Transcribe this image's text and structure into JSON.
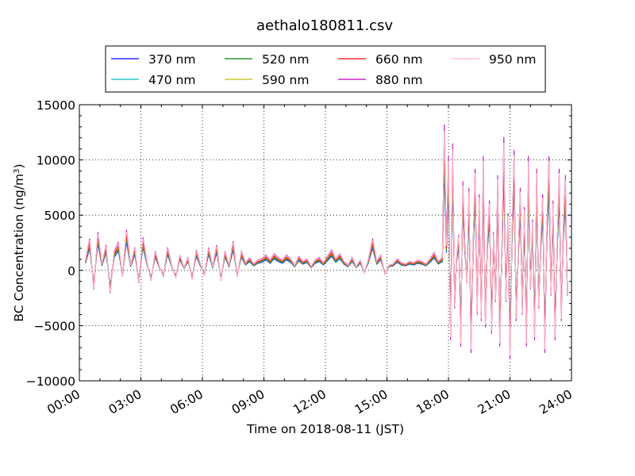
{
  "chart_data": {
    "type": "line",
    "title": "aethalo180811.csv",
    "xlabel": "Time on 2018-08-11 (JST)",
    "ylabel_main": "BC Concentration (ng/m",
    "ylabel_sup": "3",
    "ylabel_close": ")",
    "xlim_hours": [
      0,
      24
    ],
    "ylim": [
      -10000,
      15000
    ],
    "grid": true,
    "legend_position": "top-center",
    "x_ticks": [
      {
        "hour": 0,
        "label": "00:00"
      },
      {
        "hour": 3,
        "label": "03:00"
      },
      {
        "hour": 6,
        "label": "06:00"
      },
      {
        "hour": 9,
        "label": "09:00"
      },
      {
        "hour": 12,
        "label": "12:00"
      },
      {
        "hour": 15,
        "label": "15:00"
      },
      {
        "hour": 18,
        "label": "18:00"
      },
      {
        "hour": 21,
        "label": "21:00"
      },
      {
        "hour": 24,
        "label": "24:00"
      }
    ],
    "y_ticks": [
      {
        "value": 15000,
        "label": "15000"
      },
      {
        "value": 10000,
        "label": "10000"
      },
      {
        "value": 5000,
        "label": "5000"
      },
      {
        "value": 0,
        "label": "0"
      },
      {
        "value": -5000,
        "label": "−5000"
      },
      {
        "value": -10000,
        "label": "−10000"
      }
    ],
    "series": [
      {
        "name": "370 nm",
        "color": "#0000ff",
        "scale": 0.8
      },
      {
        "name": "470 nm",
        "color": "#00bfbf",
        "scale": 0.85
      },
      {
        "name": "520 nm",
        "color": "#008000",
        "scale": 0.9
      },
      {
        "name": "590 nm",
        "color": "#bfbf00",
        "scale": 0.95
      },
      {
        "name": "660 nm",
        "color": "#ff0000",
        "scale": 1.0
      },
      {
        "name": "880 nm",
        "color": "#bf00bf",
        "scale": 1.15
      },
      {
        "name": "950 nm",
        "color": "#ffb6c1",
        "scale": 1.1
      }
    ],
    "base_profile": {
      "x_hours": [
        0.3,
        0.5,
        0.7,
        0.9,
        1.1,
        1.3,
        1.5,
        1.7,
        1.9,
        2.1,
        2.3,
        2.5,
        2.7,
        2.9,
        3.1,
        3.3,
        3.5,
        3.7,
        3.9,
        4.1,
        4.3,
        4.5,
        4.7,
        4.9,
        5.1,
        5.3,
        5.5,
        5.7,
        5.9,
        6.1,
        6.3,
        6.5,
        6.7,
        6.9,
        7.1,
        7.3,
        7.5,
        7.7,
        7.9,
        8.1,
        8.3,
        8.5,
        8.7,
        8.9,
        9.1,
        9.3,
        9.5,
        9.7,
        9.9,
        10.1,
        10.3,
        10.5,
        10.7,
        10.9,
        11.1,
        11.3,
        11.5,
        11.7,
        11.9,
        12.1,
        12.3,
        12.5,
        12.7,
        12.9,
        13.1,
        13.3,
        13.5,
        13.7,
        13.9,
        14.1,
        14.3,
        14.5,
        14.7,
        14.9,
        15.1,
        15.3,
        15.5,
        15.7,
        15.9,
        16.1,
        16.3,
        16.5,
        16.7,
        16.9,
        17.1,
        17.3,
        17.5,
        17.7,
        17.8,
        17.9,
        18.0,
        18.1,
        18.2,
        18.3,
        18.4,
        18.5,
        18.6,
        18.7,
        18.8,
        18.9,
        19.0,
        19.1,
        19.2,
        19.3,
        19.4,
        19.5,
        19.6,
        19.7,
        19.8,
        19.9,
        20.0,
        20.1,
        20.2,
        20.3,
        20.4,
        20.5,
        20.6,
        20.7,
        20.8,
        20.9,
        21.0,
        21.1,
        21.2,
        21.3,
        21.4,
        21.5,
        21.6,
        21.7,
        21.8,
        21.9,
        22.0,
        22.1,
        22.2,
        22.3,
        22.4,
        22.5,
        22.6,
        22.7,
        22.8,
        22.9,
        23.0,
        23.1,
        23.2,
        23.3,
        23.4,
        23.5,
        23.6,
        23.7,
        23.8
      ],
      "y": [
        800,
        2500,
        -1500,
        3000,
        500,
        2000,
        -1800,
        1500,
        2200,
        -500,
        3200,
        400,
        1800,
        -1000,
        2600,
        600,
        -800,
        1500,
        300,
        -500,
        1800,
        400,
        -600,
        1200,
        200,
        1000,
        -700,
        1600,
        500,
        -400,
        1800,
        300,
        2000,
        -800,
        1500,
        400,
        2300,
        -500,
        1500,
        600,
        1000,
        500,
        800,
        900,
        1200,
        800,
        1300,
        1000,
        800,
        1200,
        900,
        400,
        1100,
        700,
        900,
        300,
        800,
        1000,
        600,
        1100,
        1600,
        900,
        1300,
        700,
        400,
        1000,
        300,
        800,
        -200,
        900,
        2500,
        700,
        1200,
        -300,
        400,
        500,
        900,
        600,
        500,
        700,
        600,
        800,
        700,
        500,
        900,
        1400,
        700,
        1000,
        11500,
        2000,
        9000,
        -5500,
        10000,
        -3000,
        1000,
        2800,
        -6000,
        7000,
        2000,
        -1000,
        6500,
        -6500,
        2000,
        8000,
        -3500,
        6000,
        -4000,
        9000,
        -4500,
        2500,
        5500,
        -5000,
        3000,
        -2500,
        7500,
        -6000,
        1500,
        10500,
        -2500,
        4500,
        -7000,
        3000,
        9500,
        -4000,
        1000,
        6500,
        -3500,
        5000,
        -6000,
        9000,
        -1500,
        4000,
        -5500,
        8000,
        -3000,
        2500,
        6000,
        -6500,
        3500,
        9000,
        -2000,
        5500,
        -5500,
        2000,
        8000,
        -4000,
        3500,
        7500,
        -2000
      ]
    }
  }
}
